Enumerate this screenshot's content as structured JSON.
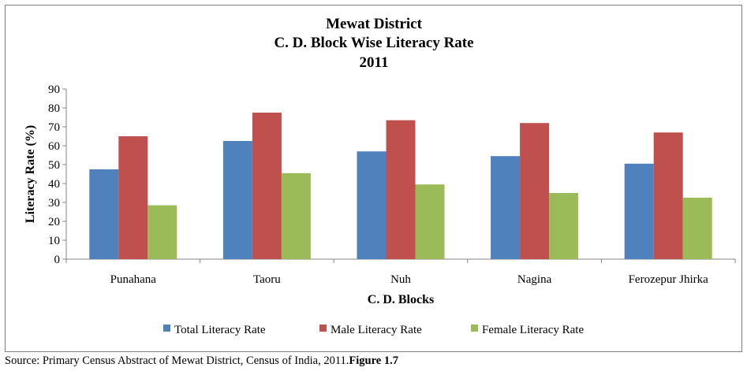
{
  "chart_data": {
    "type": "bar",
    "title_lines": [
      "Mewat District",
      "C. D. Block Wise Literacy Rate",
      "2011"
    ],
    "xlabel": "C. D. Blocks",
    "ylabel": "Literacy Rate (%)",
    "ylim": [
      0,
      90
    ],
    "yticks": [
      0,
      10,
      20,
      30,
      40,
      50,
      60,
      70,
      80,
      90
    ],
    "categories": [
      "Punahana",
      "Taoru",
      "Nuh",
      "Nagina",
      "Ferozepur Jhirka"
    ],
    "series": [
      {
        "name": "Total Literacy Rate",
        "color": "#4f81bd",
        "values": [
          47.5,
          62.5,
          57,
          54.5,
          50.5
        ]
      },
      {
        "name": "Male Literacy Rate",
        "color": "#c0504d",
        "values": [
          65,
          77.5,
          73.5,
          72,
          67
        ]
      },
      {
        "name": "Female Literacy Rate",
        "color": "#9bbb59",
        "values": [
          28.5,
          45.5,
          39.5,
          35,
          32.5
        ]
      }
    ],
    "grid": false,
    "legend_position": "bottom"
  },
  "source": {
    "text": "Source: Primary Census Abstract of Mewat District, Census of India, 2011.",
    "figure_label": "Figure 1.7"
  }
}
